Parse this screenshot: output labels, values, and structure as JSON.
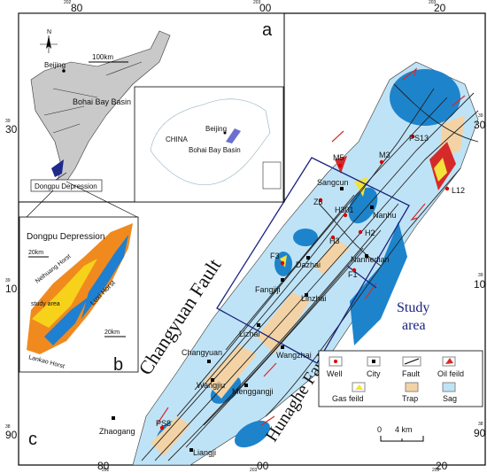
{
  "coords": {
    "top": [
      {
        "prefix": "202",
        "value": "80"
      },
      {
        "prefix": "203",
        "value": "00"
      },
      {
        "prefix": "203",
        "value": "20"
      }
    ],
    "left": [
      {
        "prefix": "39",
        "value": "30"
      },
      {
        "prefix": "39",
        "value": "10"
      },
      {
        "prefix": "38",
        "value": "90"
      }
    ]
  },
  "panel_labels": [
    "a",
    "b",
    "c"
  ],
  "inset_a": {
    "north": "N",
    "beijing": "Beijing",
    "scale": "100km",
    "basin": "Bohai Bay Basin",
    "depression": "Dongpu Depression",
    "china": "CHINA",
    "china_beijing": "Beijing",
    "china_basin": "Bohai Bay Basin"
  },
  "inset_b": {
    "title": "Dongpu Depression",
    "scale_1": "20km",
    "neihuang": "Neihuang Horst",
    "luxi": "Luxi Horst",
    "lankao": "Lankao Horst",
    "study": "study area",
    "scale_2": "20km"
  },
  "main": {
    "faults": [
      "Changyuan Fault",
      "Hunaghe Fault"
    ],
    "study_area": [
      "Study",
      "area"
    ],
    "places": [
      "PS13",
      "M5",
      "M3",
      "L12",
      "Sangcun",
      "Z6",
      "H301",
      "Nanhu",
      "H3",
      "H2",
      "F3",
      "Dazhai",
      "Nanhedian",
      "F1",
      "Fangjiji",
      "Linzhai",
      "Lizhai",
      "Changyuan",
      "Wangzhai",
      "Wangjiu",
      "Menggangji",
      "Zhaogang",
      "PS8",
      "Liangji"
    ],
    "scale": [
      "0",
      "4 km"
    ]
  },
  "legend": [
    "Well",
    "City",
    "Fault",
    "Oil feild",
    "Gas feild",
    "Trap",
    "Sag"
  ]
}
